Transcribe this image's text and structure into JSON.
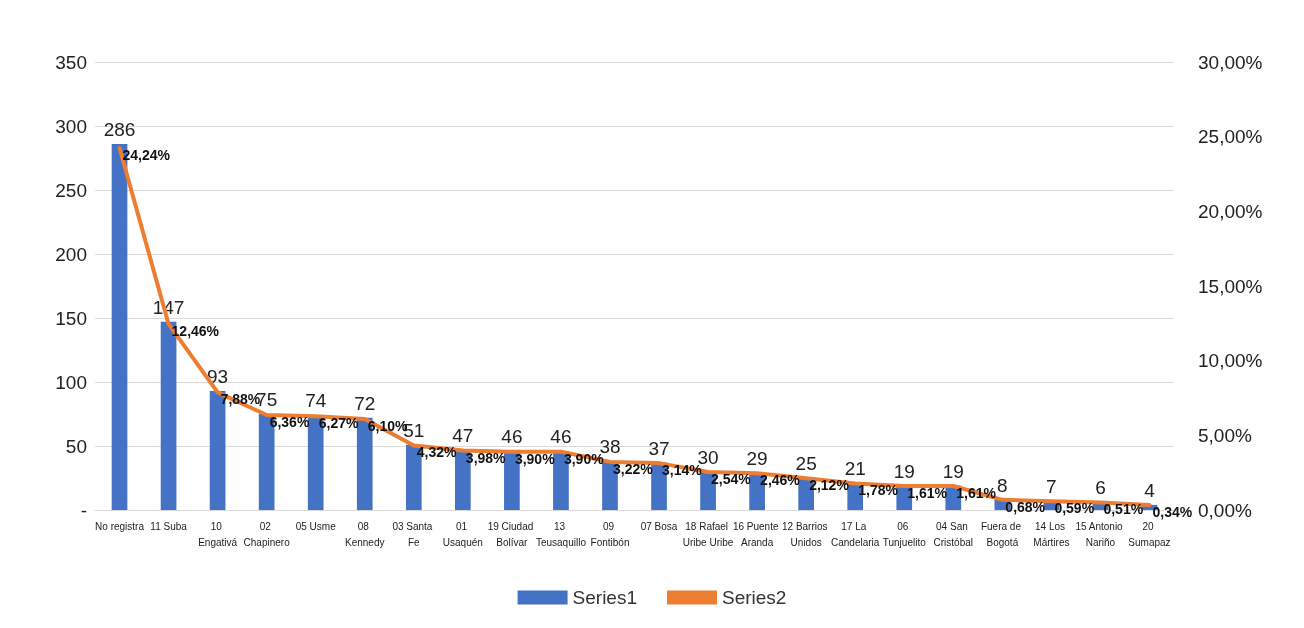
{
  "chart_data": {
    "type": "bar",
    "categories": [
      "No registra",
      "11 Suba",
      "10 Engativá",
      "02 Chapinero",
      "05 Usme",
      "08 Kennedy",
      "03 Santa Fe",
      "01 Usaquén",
      "19 Ciudad Bolívar",
      "13 Teusaquillo",
      "09 Fontibón",
      "07 Bosa",
      "18 Rafael Uribe Uribe",
      "16 Puente Aranda",
      "12 Barrios Unidos",
      "17 La Candelaria",
      "06 Tunjuelito",
      "04 San Cristóbal",
      "Fuera de Bogotá",
      "14 Los Mártires",
      "15 Antonio Nariño",
      "20 Sumapaz"
    ],
    "series": [
      {
        "name": "Series1",
        "color": "#4472c4",
        "values": [
          286,
          147,
          93,
          75,
          74,
          72,
          51,
          47,
          46,
          46,
          38,
          37,
          30,
          29,
          25,
          21,
          19,
          19,
          8,
          7,
          6,
          4
        ],
        "value_labels": [
          "286",
          "147",
          "93",
          "75",
          "74",
          "72",
          "51",
          "47",
          "46",
          "46",
          "38",
          "37",
          "30",
          "29",
          "25",
          "21",
          "19",
          "19",
          "8",
          "7",
          "6",
          "4"
        ]
      },
      {
        "name": "Series2",
        "type": "line",
        "axis": "y2",
        "color": "#ed7d31",
        "values": [
          24.24,
          12.46,
          7.88,
          6.36,
          6.27,
          6.1,
          4.32,
          3.98,
          3.9,
          3.9,
          3.22,
          3.14,
          2.54,
          2.46,
          2.12,
          1.78,
          1.61,
          1.61,
          0.68,
          0.59,
          0.51,
          0.34
        ],
        "value_labels": [
          "24,24%",
          "12,46%",
          "7,88%",
          "6,36%",
          "6,27%",
          "6,10%",
          "4,32%",
          "3,98%",
          "3,90%",
          "3,90%",
          "3,22%",
          "3,14%",
          "2,54%",
          "2,46%",
          "2,12%",
          "1,78%",
          "1,61%",
          "1,61%",
          "0,68%",
          "0,59%",
          "0,51%",
          "0,34%"
        ]
      }
    ],
    "ylim": [
      0,
      350
    ],
    "yticks": [
      {
        "value": 0,
        "label": "-"
      },
      50,
      100,
      150,
      200,
      250,
      300,
      350
    ],
    "y2lim": [
      0,
      30
    ],
    "y2ticks": [
      {
        "value": 0,
        "label": "0,00%"
      },
      {
        "value": 5,
        "label": "5,00%"
      },
      {
        "value": 10,
        "label": "10,00%"
      },
      {
        "value": 15,
        "label": "15,00%"
      },
      {
        "value": 20,
        "label": "20,00%"
      },
      {
        "value": 25,
        "label": "25,00%"
      },
      {
        "value": 30,
        "label": "30,00%"
      }
    ],
    "grid": "y",
    "legend": "bottom",
    "marker": "none",
    "line_style": "solid"
  }
}
